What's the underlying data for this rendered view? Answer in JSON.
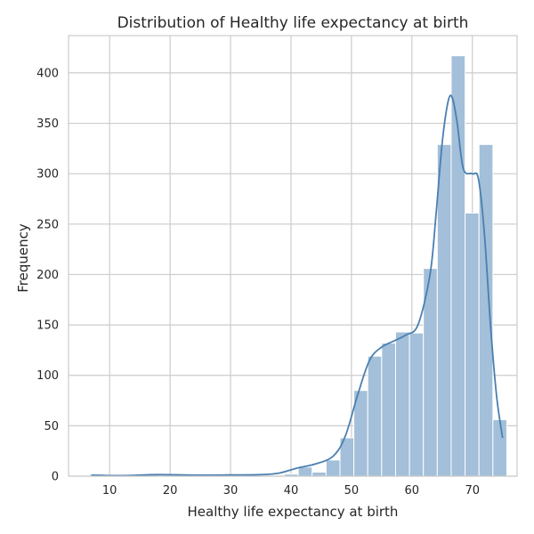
{
  "chart_data": {
    "type": "histogram",
    "title": "Distribution of Healthy life expectancy at birth",
    "xlabel": "Healthy life expectancy at birth",
    "ylabel": "Frequency",
    "xlim": [
      3.2,
      77.4
    ],
    "ylim": [
      0,
      437
    ],
    "x_ticks": [
      10,
      20,
      30,
      40,
      50,
      60,
      70
    ],
    "y_ticks": [
      0,
      50,
      100,
      150,
      200,
      250,
      300,
      350,
      400
    ],
    "grid": true,
    "bar_color": "#a3bfd9",
    "kde_color": "#4a7fb0",
    "grid_color": "#cccccc",
    "bins": [
      {
        "x0": 6.7,
        "x1": 9.0,
        "count": 2
      },
      {
        "x0": 9.0,
        "x1": 11.3,
        "count": 1
      },
      {
        "x0": 11.3,
        "x1": 13.6,
        "count": 0
      },
      {
        "x0": 13.6,
        "x1": 15.9,
        "count": 0
      },
      {
        "x0": 15.9,
        "x1": 18.2,
        "count": 2
      },
      {
        "x0": 18.2,
        "x1": 20.5,
        "count": 1
      },
      {
        "x0": 20.5,
        "x1": 22.8,
        "count": 0
      },
      {
        "x0": 22.8,
        "x1": 25.1,
        "count": 0
      },
      {
        "x0": 25.1,
        "x1": 27.4,
        "count": 1
      },
      {
        "x0": 27.4,
        "x1": 29.7,
        "count": 2
      },
      {
        "x0": 29.7,
        "x1": 32.0,
        "count": 1
      },
      {
        "x0": 32.0,
        "x1": 34.3,
        "count": 2
      },
      {
        "x0": 34.3,
        "x1": 36.6,
        "count": 1
      },
      {
        "x0": 36.6,
        "x1": 38.9,
        "count": 0
      },
      {
        "x0": 38.9,
        "x1": 41.2,
        "count": 2
      },
      {
        "x0": 41.2,
        "x1": 43.5,
        "count": 9
      },
      {
        "x0": 43.5,
        "x1": 45.8,
        "count": 4
      },
      {
        "x0": 45.8,
        "x1": 48.1,
        "count": 16
      },
      {
        "x0": 48.1,
        "x1": 50.4,
        "count": 38
      },
      {
        "x0": 50.4,
        "x1": 52.7,
        "count": 85
      },
      {
        "x0": 52.7,
        "x1": 55.0,
        "count": 119
      },
      {
        "x0": 55.0,
        "x1": 57.3,
        "count": 132
      },
      {
        "x0": 57.3,
        "x1": 59.6,
        "count": 143
      },
      {
        "x0": 59.6,
        "x1": 61.9,
        "count": 142
      },
      {
        "x0": 61.9,
        "x1": 64.2,
        "count": 206
      },
      {
        "x0": 64.2,
        "x1": 66.5,
        "count": 329
      },
      {
        "x0": 66.5,
        "x1": 68.8,
        "count": 417
      },
      {
        "x0": 68.8,
        "x1": 71.1,
        "count": 261
      },
      {
        "x0": 71.1,
        "x1": 73.4,
        "count": 329
      },
      {
        "x0": 73.4,
        "x1": 75.7,
        "count": 56
      }
    ],
    "kde": [
      [
        7,
        1
      ],
      [
        12,
        0.5
      ],
      [
        18,
        1.5
      ],
      [
        25,
        1
      ],
      [
        30,
        1.2
      ],
      [
        35,
        1.5
      ],
      [
        38,
        3
      ],
      [
        41,
        8
      ],
      [
        44,
        12
      ],
      [
        47,
        20
      ],
      [
        49,
        40
      ],
      [
        51,
        80
      ],
      [
        53,
        115
      ],
      [
        55,
        128
      ],
      [
        57,
        134
      ],
      [
        59,
        140
      ],
      [
        61,
        150
      ],
      [
        63,
        200
      ],
      [
        64,
        260
      ],
      [
        65,
        330
      ],
      [
        66,
        372
      ],
      [
        66.7,
        375
      ],
      [
        67.5,
        350
      ],
      [
        68.5,
        305
      ],
      [
        70,
        300
      ],
      [
        71,
        295
      ],
      [
        72,
        240
      ],
      [
        73,
        150
      ],
      [
        74,
        80
      ],
      [
        75,
        38
      ]
    ]
  }
}
